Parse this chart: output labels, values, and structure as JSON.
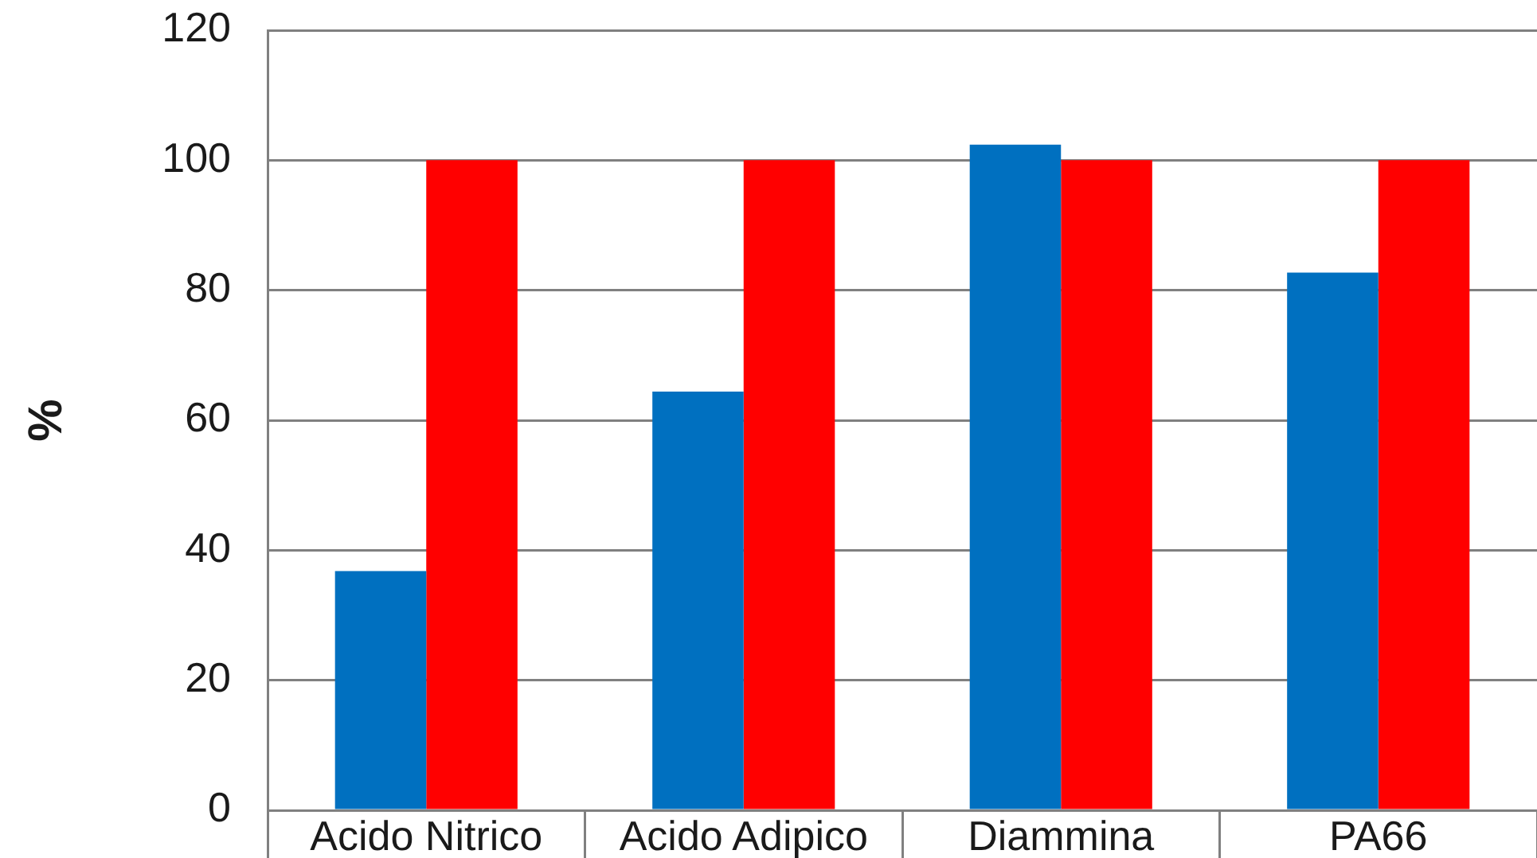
{
  "chart_data": {
    "type": "bar",
    "ylabel": "%",
    "categories": [
      "Acido Nitrico",
      "Acido Adipico",
      "Diammina",
      "PA66"
    ],
    "series": [
      {
        "color": "#0070c0",
        "values": [
          36.8,
          64.4,
          102.4,
          82.7
        ]
      },
      {
        "color": "#ff0000",
        "values": [
          100,
          100,
          100,
          100
        ]
      }
    ],
    "ylim": [
      0,
      120
    ],
    "yticks": [
      0,
      20,
      40,
      60,
      80,
      100,
      120
    ],
    "grid": "y"
  }
}
